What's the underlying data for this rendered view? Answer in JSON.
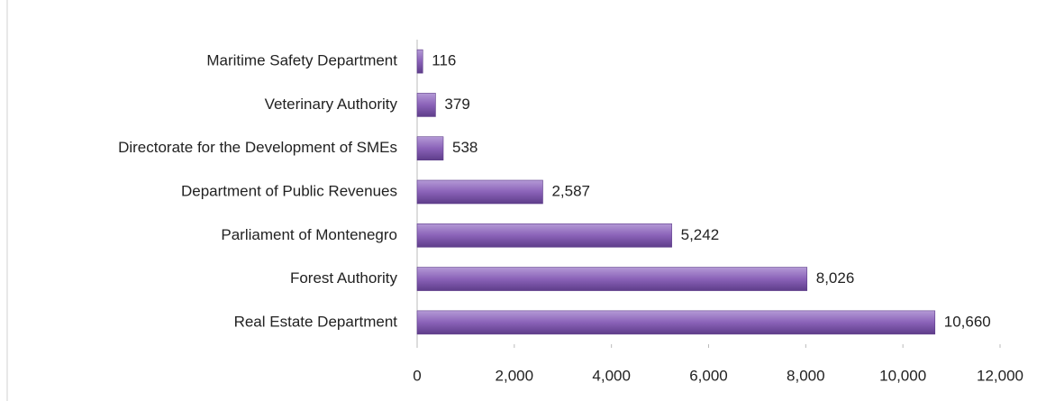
{
  "chart_data": {
    "type": "bar",
    "orientation": "horizontal",
    "categories": [
      "Maritime Safety Department",
      "Veterinary Authority",
      "Directorate for the Development of SMEs",
      "Department of Public Revenues",
      "Parliament of Montenegro",
      "Forest Authority",
      "Real Estate Department"
    ],
    "values": [
      116,
      379,
      538,
      2587,
      5242,
      8026,
      10660
    ],
    "value_labels": [
      "116",
      "379",
      "538",
      "2,587",
      "5,242",
      "8,026",
      "10,660"
    ],
    "color": "#8a62b8",
    "xlim": [
      0,
      12000
    ],
    "xticks": [
      0,
      {
        "value": 2000,
        "label": "2,000"
      },
      {
        "value": 4000,
        "label": "4,000"
      },
      {
        "value": 6000,
        "label": "6,000"
      },
      {
        "value": 8000,
        "label": "8,000"
      },
      {
        "value": 10000,
        "label": "10,000"
      },
      {
        "value": 12000,
        "label": "12,000"
      }
    ]
  }
}
